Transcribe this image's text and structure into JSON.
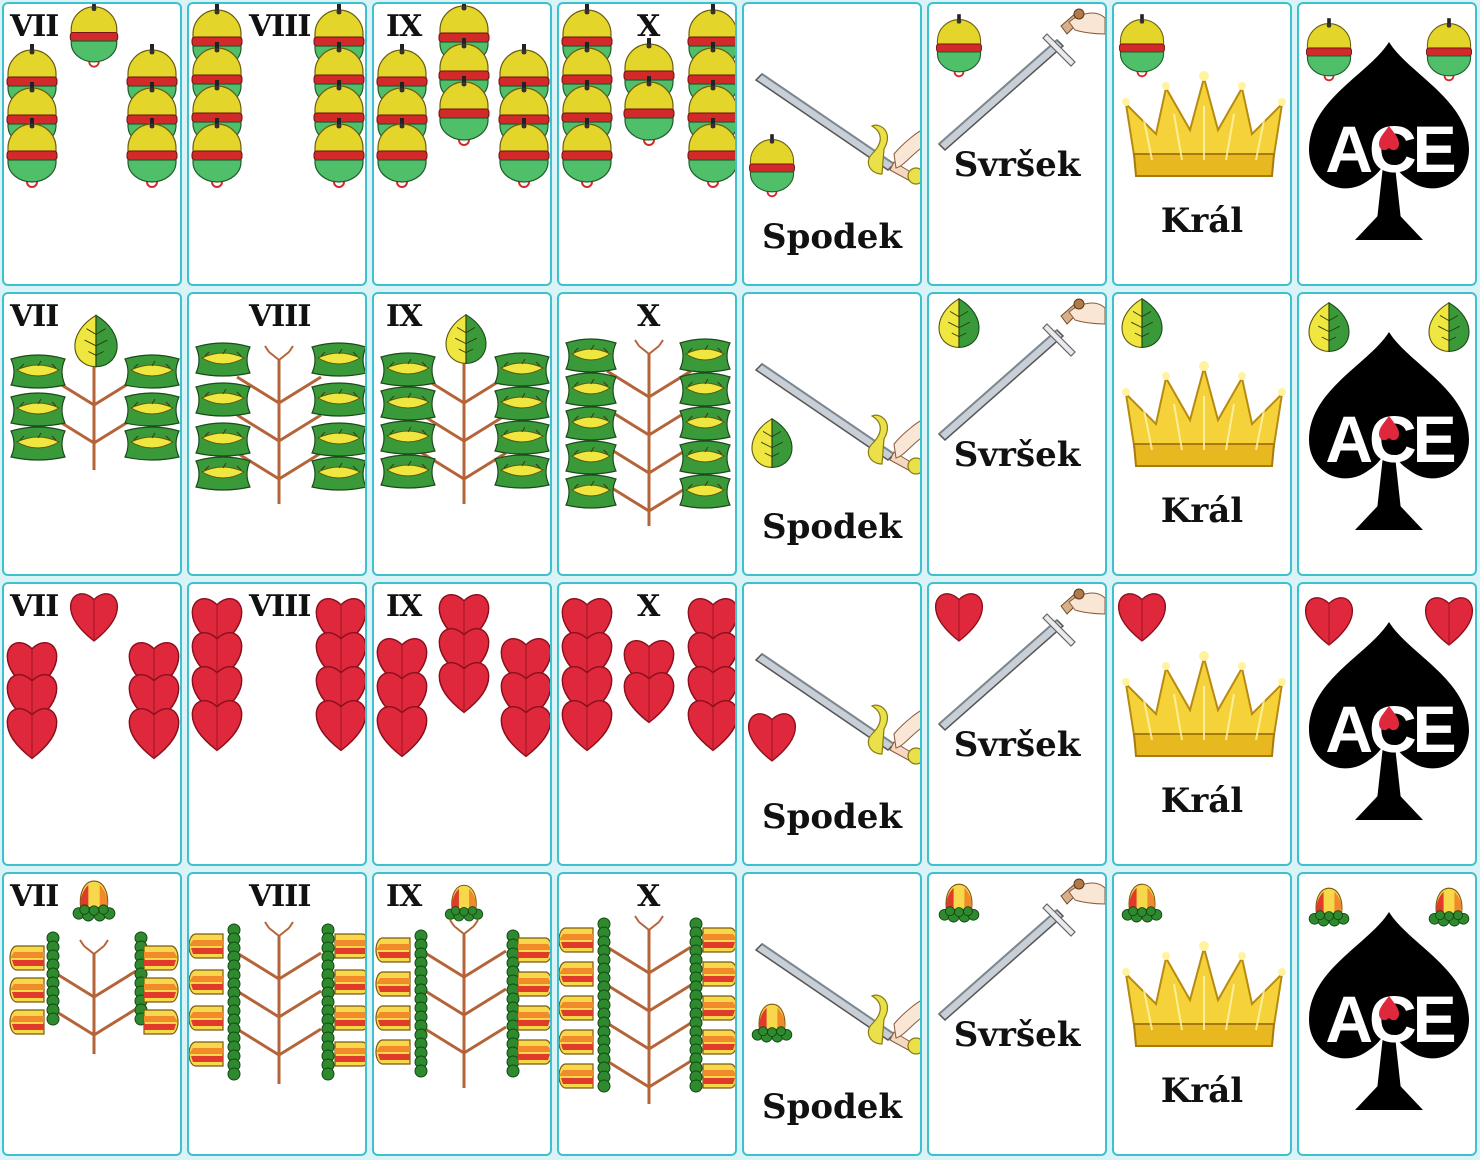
{
  "game": {
    "deck": "Czech single-headed pattern",
    "colors": {
      "card_border": "#3ec0cf",
      "background": "#d9f3f6",
      "bell_yellow": "#e4d52a",
      "bell_green": "#4fbf6a",
      "bell_band": "#d22a2a",
      "leaf_green": "#3a9a3a",
      "leaf_yellow": "#f0e640",
      "heart_red": "#e0283c",
      "acorn_green": "#2f8a2f",
      "acorn_red": "#e03a2a",
      "acorn_yellow": "#f7d84a",
      "branch_brown": "#b5643a",
      "spade_black": "#000000",
      "crown_gold": "#f5d23a",
      "blade_silver": "#c9cfd6"
    },
    "icons": {
      "bells": "bell-icon",
      "leaves": "leaf-icon",
      "hearts": "heart-icon",
      "acorns": "acorn-icon",
      "sword": "sword-icon",
      "crown": "crown-icon",
      "ace": "spade-ace-icon"
    },
    "suits": [
      {
        "suit": "bells",
        "cards": [
          {
            "rank": "VII",
            "label": "VII"
          },
          {
            "rank": "VIII",
            "label": "VIII"
          },
          {
            "rank": "IX",
            "label": "IX"
          },
          {
            "rank": "X",
            "label": "X"
          },
          {
            "rank": "Spodek",
            "label": "Spodek"
          },
          {
            "rank": "Svršek",
            "label": "Svršek"
          },
          {
            "rank": "Král",
            "label": "Král"
          },
          {
            "rank": "Ace",
            "label": "ACE"
          }
        ]
      },
      {
        "suit": "leaves",
        "cards": [
          {
            "rank": "VII",
            "label": "VII"
          },
          {
            "rank": "VIII",
            "label": "VIII"
          },
          {
            "rank": "IX",
            "label": "IX"
          },
          {
            "rank": "X",
            "label": "X"
          },
          {
            "rank": "Spodek",
            "label": "Spodek"
          },
          {
            "rank": "Svršek",
            "label": "Svršek"
          },
          {
            "rank": "Král",
            "label": "Král"
          },
          {
            "rank": "Ace",
            "label": "ACE"
          }
        ]
      },
      {
        "suit": "hearts",
        "cards": [
          {
            "rank": "VII",
            "label": "VII"
          },
          {
            "rank": "VIII",
            "label": "VIII"
          },
          {
            "rank": "IX",
            "label": "IX"
          },
          {
            "rank": "X",
            "label": "X"
          },
          {
            "rank": "Spodek",
            "label": "Spodek"
          },
          {
            "rank": "Svršek",
            "label": "Svršek"
          },
          {
            "rank": "Král",
            "label": "Král"
          },
          {
            "rank": "Ace",
            "label": "ACE"
          }
        ]
      },
      {
        "suit": "acorns",
        "cards": [
          {
            "rank": "VII",
            "label": "VII"
          },
          {
            "rank": "VIII",
            "label": "VIII"
          },
          {
            "rank": "IX",
            "label": "IX"
          },
          {
            "rank": "X",
            "label": "X"
          },
          {
            "rank": "Spodek",
            "label": "Spodek"
          },
          {
            "rank": "Svršek",
            "label": "Svršek"
          },
          {
            "rank": "Král",
            "label": "Král"
          },
          {
            "rank": "Ace",
            "label": "ACE"
          }
        ]
      }
    ]
  }
}
